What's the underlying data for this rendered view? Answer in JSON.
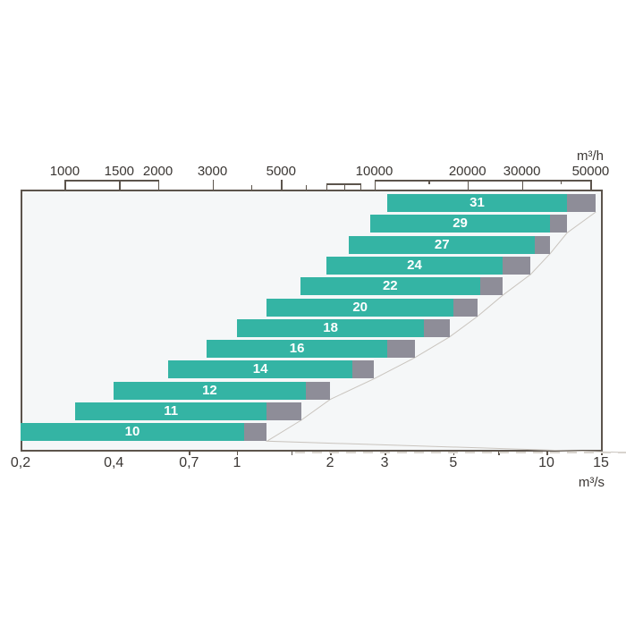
{
  "colors": {
    "bar_teal": "#34b4a4",
    "bar_gray": "#8e8d98",
    "plot_background": "#f5f7f8",
    "plot_border": "#5c544c",
    "gridline": "#6f675f",
    "row_line": "#e7ebec",
    "bar_label_text": "#ffffff",
    "axis_text": "#3b3734",
    "envelope_line": "#c9c4be",
    "dashed_line": "#d8d4ce"
  },
  "top_axis": {
    "unit": "m³/h",
    "labels": [
      "1000",
      "1500",
      "2000",
      "3000",
      "5000",
      "10000",
      "20000",
      "30000",
      "50000"
    ],
    "label_values": [
      1000,
      1500,
      2000,
      3000,
      5000,
      10000,
      20000,
      30000,
      50000
    ],
    "minor_ticks": [
      4000,
      6000
    ],
    "boxed_ticks": [
      7000,
      8000,
      9000
    ],
    "boxed_span": [
      7000,
      9000
    ],
    "bracket_spans": [
      [
        1000,
        2000
      ],
      [
        10000,
        50000
      ]
    ],
    "hanging_ticks": [
      15000,
      40000
    ]
  },
  "bottom_axis": {
    "unit": "m³/s",
    "min": 0.2,
    "max": 15,
    "labels": [
      {
        "text": "0,2",
        "value": 0.2
      },
      {
        "text": "0,4",
        "value": 0.4
      },
      {
        "text": "0,7",
        "value": 0.7
      },
      {
        "text": "1",
        "value": 1
      },
      {
        "text": "2",
        "value": 2
      },
      {
        "text": "3",
        "value": 3
      },
      {
        "text": "5",
        "value": 5
      },
      {
        "text": "10",
        "value": 10
      },
      {
        "text": "15",
        "value": 15
      }
    ],
    "ticks": [
      0.7,
      1,
      1.5,
      2,
      3,
      5,
      7,
      10,
      15
    ],
    "gridlines": [
      0.3,
      0.5,
      0.7,
      1,
      1.5,
      2,
      3,
      5,
      7,
      10,
      15
    ]
  },
  "chart_data": {
    "type": "bar",
    "orientation": "horizontal",
    "x_scale": "log",
    "x_unit_top": "m³/h",
    "x_unit_bottom": "m³/s",
    "x_range_m3s": [
      0.2,
      15
    ],
    "x_range_m3h": [
      720,
      54000
    ],
    "grid": true,
    "series_note": "teal segment = nominal airflow range, gray segment = extended maximum",
    "bars": [
      {
        "size": "31",
        "min_m3h": 11000,
        "nominal_max_m3h": 42000,
        "extended_max_m3h": 52000
      },
      {
        "size": "29",
        "min_m3h": 9700,
        "nominal_max_m3h": 37000,
        "extended_max_m3h": 42000
      },
      {
        "size": "27",
        "min_m3h": 8300,
        "nominal_max_m3h": 33000,
        "extended_max_m3h": 37000
      },
      {
        "size": "24",
        "min_m3h": 7000,
        "nominal_max_m3h": 26000,
        "extended_max_m3h": 32000
      },
      {
        "size": "22",
        "min_m3h": 5760,
        "nominal_max_m3h": 22000,
        "extended_max_m3h": 26000
      },
      {
        "size": "20",
        "min_m3h": 4500,
        "nominal_max_m3h": 18000,
        "extended_max_m3h": 21600
      },
      {
        "size": "18",
        "min_m3h": 3600,
        "nominal_max_m3h": 14500,
        "extended_max_m3h": 17500
      },
      {
        "size": "16",
        "min_m3h": 2880,
        "nominal_max_m3h": 11000,
        "extended_max_m3h": 13500
      },
      {
        "size": "14",
        "min_m3h": 2160,
        "nominal_max_m3h": 8500,
        "extended_max_m3h": 10000
      },
      {
        "size": "12",
        "min_m3h": 1440,
        "nominal_max_m3h": 6000,
        "extended_max_m3h": 7200
      },
      {
        "size": "11",
        "min_m3h": 1080,
        "nominal_max_m3h": 4500,
        "extended_max_m3h": 5800
      },
      {
        "size": "10",
        "min_m3h": 720,
        "nominal_max_m3h": 3800,
        "extended_max_m3h": 4500
      }
    ]
  }
}
